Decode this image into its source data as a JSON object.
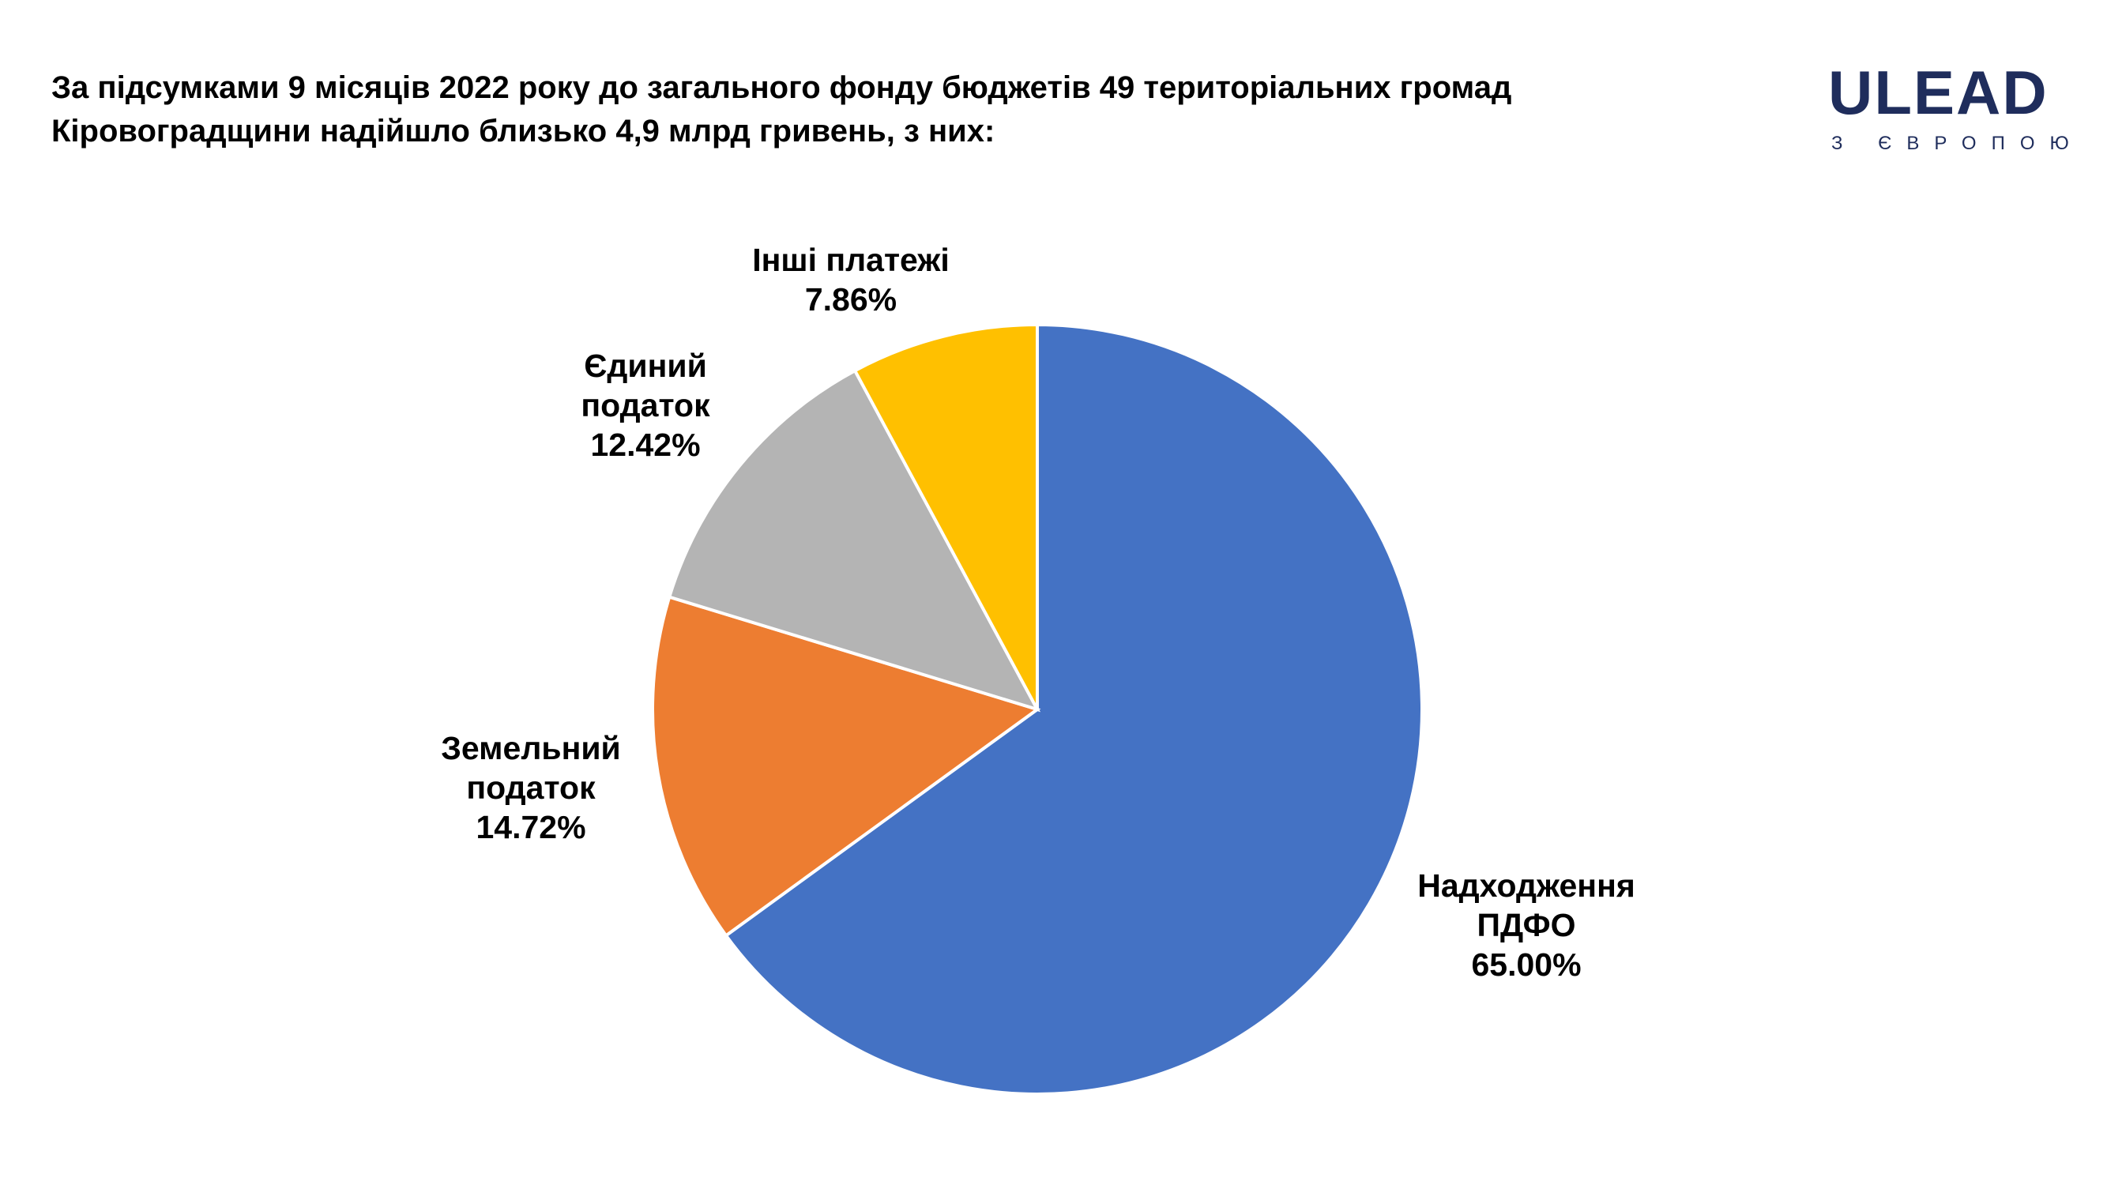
{
  "chart_data": {
    "type": "pie",
    "title": "За підсумками 9 місяців 2022 року до загального фонду бюджетів 49 територіальних громад Кіровоградщини надійшло близько 4,9 млрд гривень, з них:",
    "categories": [
      "Надходження ПДФО",
      "Земельний податок",
      "Єдиний податок",
      "Інші платежі"
    ],
    "values": [
      65.0,
      14.72,
      12.42,
      7.86
    ],
    "value_labels": [
      "65.00%",
      "14.72%",
      "12.42%",
      "7.86%"
    ],
    "colors": [
      "#4472c4",
      "#ed7d31",
      "#b4b4b4",
      "#ffc000"
    ]
  },
  "logo": {
    "name": "ULEAD",
    "tagline": "З ЄВРОПОЮ"
  }
}
